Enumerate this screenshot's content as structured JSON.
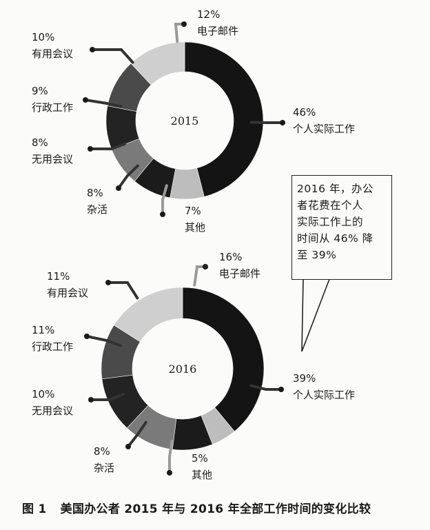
{
  "chart_data": [
    {
      "type": "pie",
      "center_label": "2015",
      "slices": [
        {
          "label": "个人实际工作",
          "value": 46,
          "percent": "46%"
        },
        {
          "label": "其他",
          "value": 7,
          "percent": "7%"
        },
        {
          "label": "杂活",
          "value": 8,
          "percent": "8%"
        },
        {
          "label": "无用会议",
          "value": 8,
          "percent": "8%"
        },
        {
          "label": "行政工作",
          "value": 9,
          "percent": "9%"
        },
        {
          "label": "有用会议",
          "value": 10,
          "percent": "10%"
        },
        {
          "label": "电子邮件",
          "value": 12,
          "percent": "12%"
        }
      ]
    },
    {
      "type": "pie",
      "center_label": "2016",
      "slices": [
        {
          "label": "个人实际工作",
          "value": 39,
          "percent": "39%"
        },
        {
          "label": "其他",
          "value": 5,
          "percent": "5%"
        },
        {
          "label": "杂活",
          "value": 8,
          "percent": "8%"
        },
        {
          "label": "无用会议",
          "value": 10,
          "percent": "10%"
        },
        {
          "label": "行政工作",
          "value": 11,
          "percent": "11%"
        },
        {
          "label": "有用会议",
          "value": 11,
          "percent": "11%"
        },
        {
          "label": "电子邮件",
          "value": 16,
          "percent": "16%"
        }
      ]
    }
  ],
  "colors": {
    "个人实际工作": "#141414",
    "其他": "#bdbdbd",
    "杂活": "#1b1b1b",
    "无用会议": "#7a7a7a",
    "行政工作": "#232323",
    "有用会议": "#4a4a4a",
    "电子邮件": "#cfcfcf"
  },
  "callout": {
    "lines": [
      "2016 年，办公",
      "者花费在个人",
      "实际工作上的",
      "时间从 46% 降",
      "至 39%"
    ]
  },
  "caption": {
    "figure": "图 1",
    "text": "美国办公者 2015 年与 2016 年全部工作时间的变化比较"
  }
}
